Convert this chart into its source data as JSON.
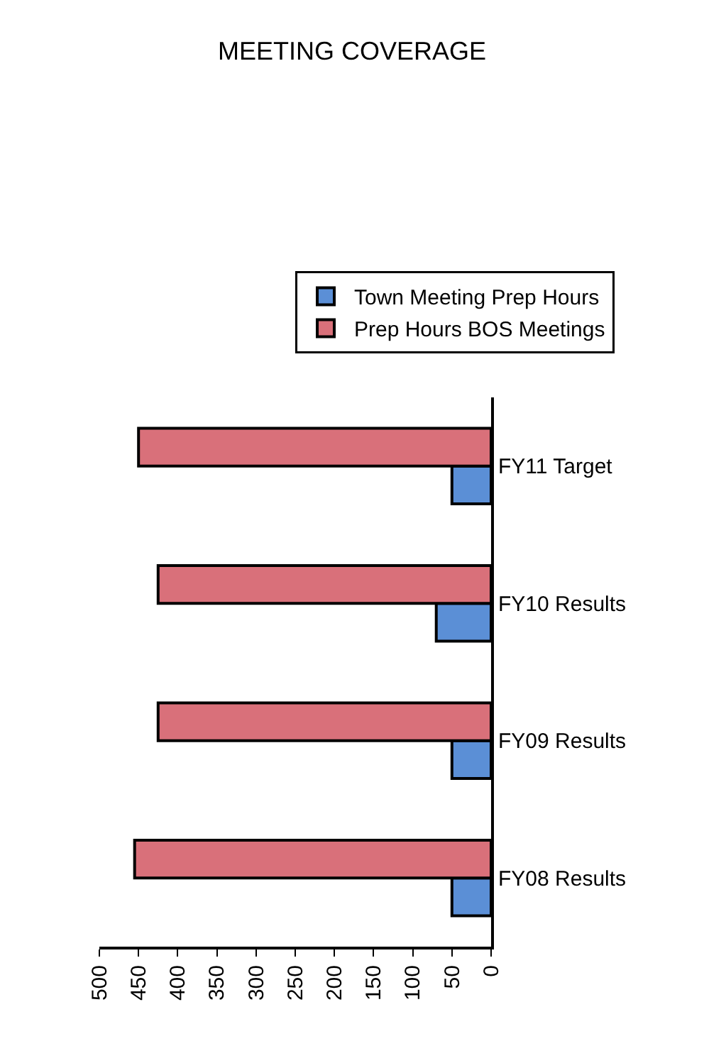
{
  "chart_data": {
    "type": "bar",
    "title": "MEETING COVERAGE",
    "orientation": "horizontal",
    "categories": [
      "FY11 Target",
      "FY10 Results",
      "FY09 Results",
      "FY08 Results"
    ],
    "series": [
      {
        "name": "Town Meeting Prep Hours",
        "color": "#5b8fd6",
        "values": [
          50,
          70,
          50,
          50
        ]
      },
      {
        "name": "Prep Hours BOS Meetings",
        "color": "#d9707a",
        "values": [
          450,
          425,
          425,
          455
        ]
      }
    ],
    "xlim": [
      500,
      0
    ],
    "xticks": [
      0,
      50,
      100,
      150,
      200,
      250,
      300,
      350,
      400,
      450,
      500
    ],
    "grid": false,
    "legend": "top"
  }
}
